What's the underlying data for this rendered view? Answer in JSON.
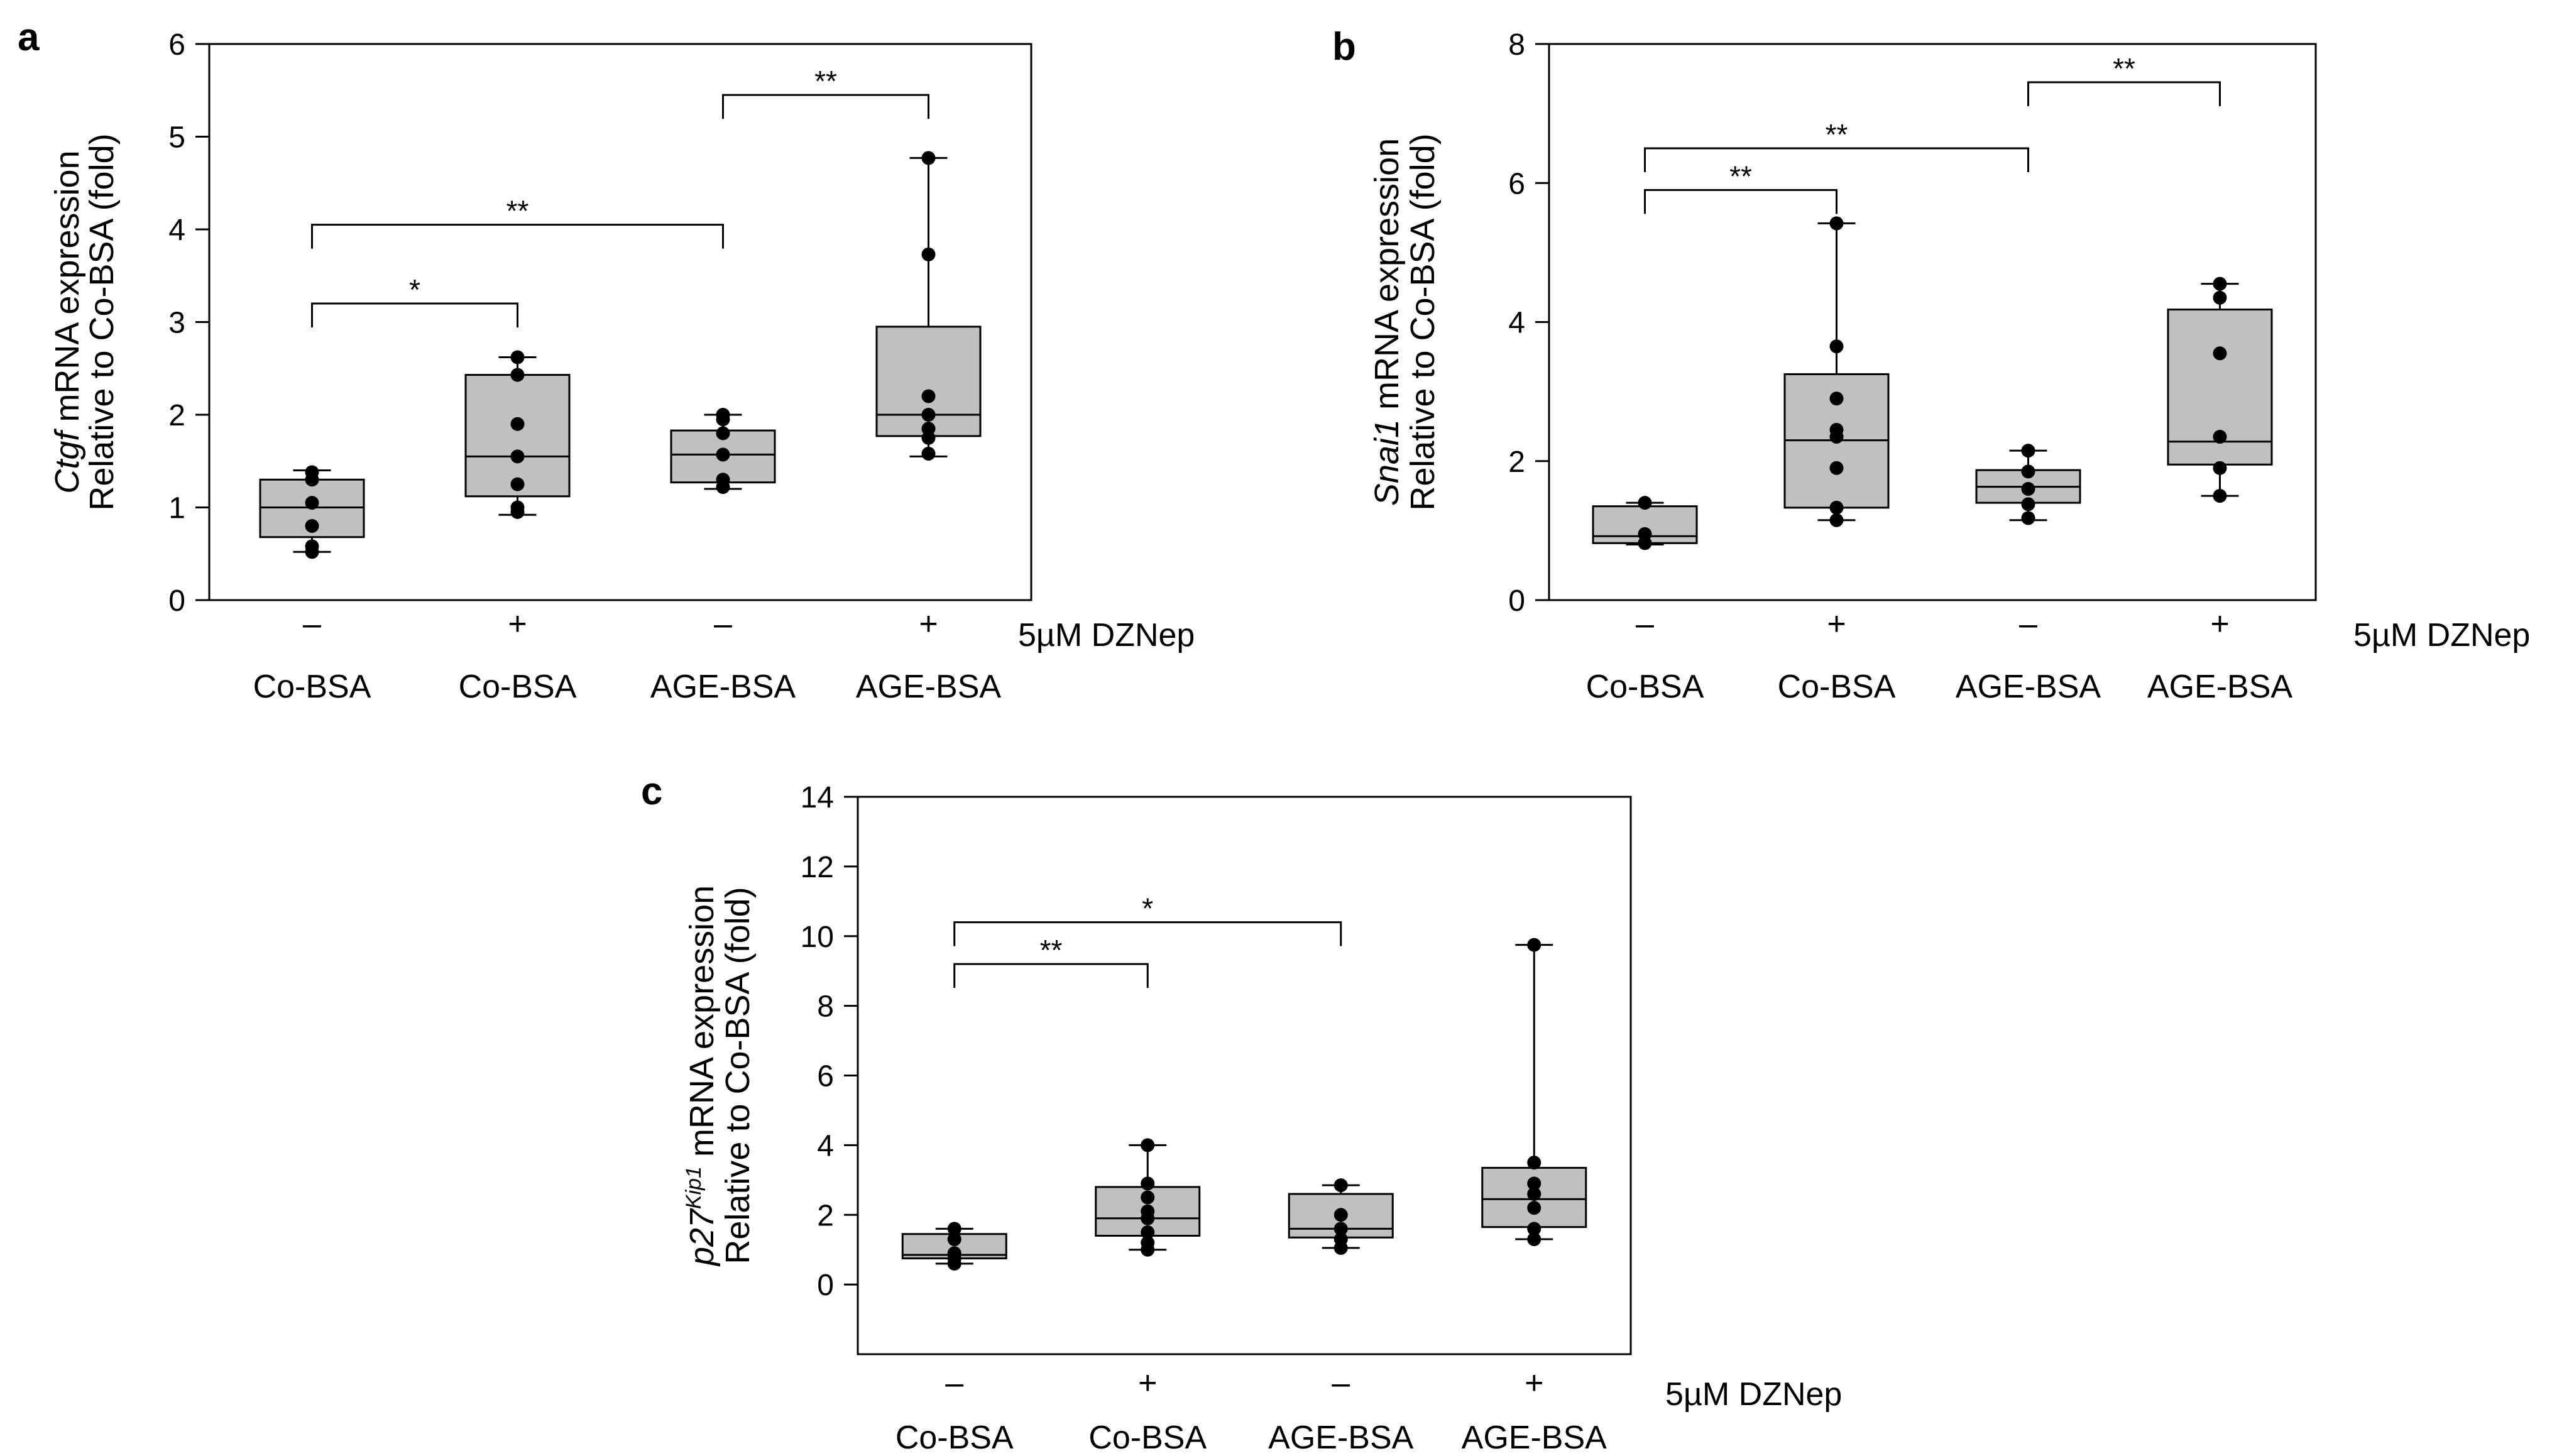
{
  "figure": {
    "panels": [
      "a",
      "b",
      "c"
    ]
  },
  "chart_data": [
    {
      "type": "box",
      "panel_label": "a",
      "ylabel_gene": "Ctgf",
      "ylabel_gene_sup": "",
      "ylabel_rest": " mRNA expression",
      "ylabel_line2": "Relative to Co-BSA (fold)",
      "ylim": [
        0,
        6
      ],
      "yticks": [
        0,
        1,
        2,
        3,
        4,
        5,
        6
      ],
      "treatment_label": "5µM DZNep",
      "treatments": [
        "–",
        "+",
        "–",
        "+"
      ],
      "categories": [
        "Co-BSA",
        "Co-BSA",
        "AGE-BSA",
        "AGE-BSA"
      ],
      "boxes": [
        {
          "min": 0.52,
          "q1": 0.68,
          "median": 1.0,
          "q3": 1.3,
          "max": 1.4,
          "points": [
            0.52,
            0.58,
            0.8,
            1.05,
            1.3,
            1.38
          ]
        },
        {
          "min": 0.92,
          "q1": 1.12,
          "median": 1.55,
          "q3": 2.43,
          "max": 2.62,
          "points": [
            0.95,
            1.0,
            1.25,
            1.55,
            1.9,
            2.43,
            2.62
          ]
        },
        {
          "min": 1.2,
          "q1": 1.27,
          "median": 1.57,
          "q3": 1.83,
          "max": 2.0,
          "points": [
            1.22,
            1.3,
            1.57,
            1.8,
            1.95,
            2.0
          ]
        },
        {
          "min": 1.55,
          "q1": 1.77,
          "median": 2.0,
          "q3": 2.95,
          "max": 4.77,
          "points": [
            1.58,
            1.75,
            1.85,
            2.0,
            2.2,
            3.73,
            4.77
          ]
        }
      ],
      "significance": [
        {
          "from": 0,
          "to": 1,
          "label": "*",
          "y": 3.2
        },
        {
          "from": 0,
          "to": 2,
          "label": "**",
          "y": 4.05
        },
        {
          "from": 2,
          "to": 3,
          "label": "**",
          "y": 5.45
        }
      ]
    },
    {
      "type": "box",
      "panel_label": "b",
      "ylabel_gene": "Snai1",
      "ylabel_gene_sup": "",
      "ylabel_rest": " mRNA expression",
      "ylabel_line2": "Relative to Co-BSA (fold)",
      "ylim": [
        0,
        8
      ],
      "yticks": [
        0,
        2,
        4,
        6,
        8
      ],
      "treatment_label": "5µM DZNep",
      "treatments": [
        "–",
        "+",
        "–",
        "+"
      ],
      "categories": [
        "Co-BSA",
        "Co-BSA",
        "AGE-BSA",
        "AGE-BSA"
      ],
      "boxes": [
        {
          "min": 0.8,
          "q1": 0.82,
          "median": 0.92,
          "q3": 1.35,
          "max": 1.4,
          "points": [
            0.82,
            0.95,
            1.4
          ]
        },
        {
          "min": 1.15,
          "q1": 1.33,
          "median": 2.3,
          "q3": 3.25,
          "max": 5.42,
          "points": [
            1.15,
            1.33,
            1.9,
            2.35,
            2.45,
            2.9,
            3.65,
            5.42
          ]
        },
        {
          "min": 1.15,
          "q1": 1.4,
          "median": 1.63,
          "q3": 1.87,
          "max": 2.15,
          "points": [
            1.18,
            1.38,
            1.6,
            1.85,
            2.15
          ]
        },
        {
          "min": 1.5,
          "q1": 1.95,
          "median": 2.28,
          "q3": 4.18,
          "max": 4.55,
          "points": [
            1.5,
            1.9,
            2.35,
            3.55,
            4.35,
            4.55
          ]
        }
      ],
      "significance": [
        {
          "from": 0,
          "to": 1,
          "label": "**",
          "y": 5.9
        },
        {
          "from": 0,
          "to": 2,
          "label": "**",
          "y": 6.5
        },
        {
          "from": 2,
          "to": 3,
          "label": "**",
          "y": 7.45
        }
      ]
    },
    {
      "type": "box",
      "panel_label": "c",
      "ylabel_gene": "p27",
      "ylabel_gene_sup": "Kip1",
      "ylabel_rest": " mRNA expression",
      "ylabel_line2": "Relative to Co-BSA (fold)",
      "ylim": [
        -2,
        14
      ],
      "yticks": [
        0,
        2,
        4,
        6,
        8,
        10,
        12,
        14
      ],
      "treatment_label": "5µM DZNep",
      "treatments": [
        "–",
        "+",
        "–",
        "+"
      ],
      "categories": [
        "Co-BSA",
        "Co-BSA",
        "AGE-BSA",
        "AGE-BSA"
      ],
      "boxes": [
        {
          "min": 0.6,
          "q1": 0.75,
          "median": 0.85,
          "q3": 1.45,
          "max": 1.6,
          "points": [
            0.6,
            0.75,
            0.9,
            1.3,
            1.6
          ]
        },
        {
          "min": 1.0,
          "q1": 1.4,
          "median": 1.9,
          "q3": 2.8,
          "max": 4.0,
          "points": [
            1.0,
            1.2,
            1.5,
            1.9,
            2.1,
            2.5,
            2.9,
            4.0
          ]
        },
        {
          "min": 1.05,
          "q1": 1.35,
          "median": 1.6,
          "q3": 2.6,
          "max": 2.85,
          "points": [
            1.05,
            1.3,
            1.6,
            2.0,
            2.85
          ]
        },
        {
          "min": 1.3,
          "q1": 1.65,
          "median": 2.45,
          "q3": 3.35,
          "max": 9.75,
          "points": [
            1.3,
            1.6,
            2.2,
            2.6,
            2.9,
            3.5,
            9.75
          ]
        }
      ],
      "significance": [
        {
          "from": 0,
          "to": 1,
          "label": "**",
          "y": 9.2
        },
        {
          "from": 0,
          "to": 2,
          "label": "*",
          "y": 10.4
        }
      ]
    }
  ]
}
